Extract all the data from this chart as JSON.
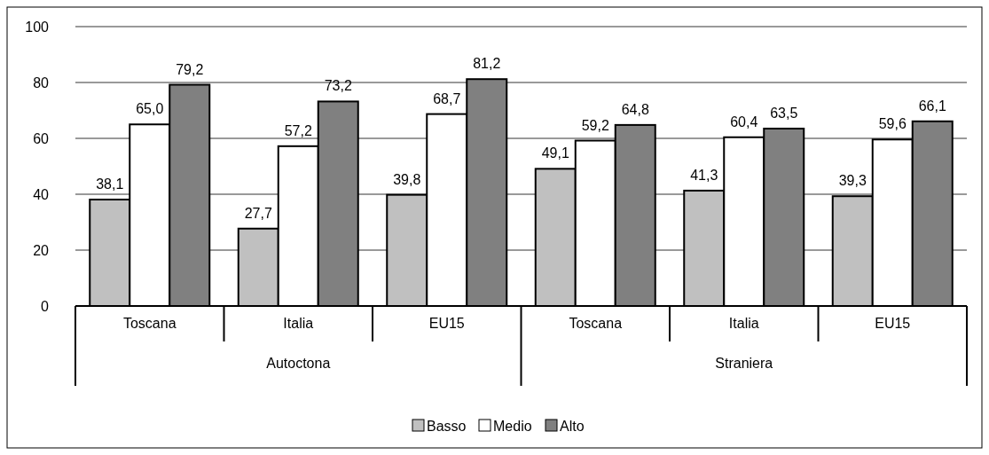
{
  "chart_data": {
    "type": "bar",
    "categories": [
      "Toscana",
      "Italia",
      "EU15",
      "Toscana",
      "Italia",
      "EU15"
    ],
    "annotations": [
      "Autoctona",
      "Straniera"
    ],
    "series": [
      {
        "name": "Basso",
        "color": "#c0c0c0",
        "values": [
          38.1,
          27.7,
          39.8,
          49.1,
          41.3,
          39.3
        ],
        "value_labels": [
          "38,1",
          "27,7",
          "39,8",
          "49,1",
          "41,3",
          "39,3"
        ]
      },
      {
        "name": "Medio",
        "color": "#ffffff",
        "values": [
          65.0,
          57.2,
          68.7,
          59.2,
          60.4,
          59.6
        ],
        "value_labels": [
          "65,0",
          "57,2",
          "68,7",
          "59,2",
          "60,4",
          "59,6"
        ]
      },
      {
        "name": "Alto",
        "color": "#808080",
        "values": [
          79.2,
          73.2,
          81.2,
          64.8,
          63.5,
          66.1
        ],
        "value_labels": [
          "79,2",
          "73,2",
          "81,2",
          "64,8",
          "63,5",
          "66,1"
        ]
      }
    ],
    "ylim": [
      0,
      100
    ],
    "yticks": [
      0,
      20,
      40,
      60,
      80,
      100
    ],
    "grid": "y",
    "legend": "bottom"
  }
}
